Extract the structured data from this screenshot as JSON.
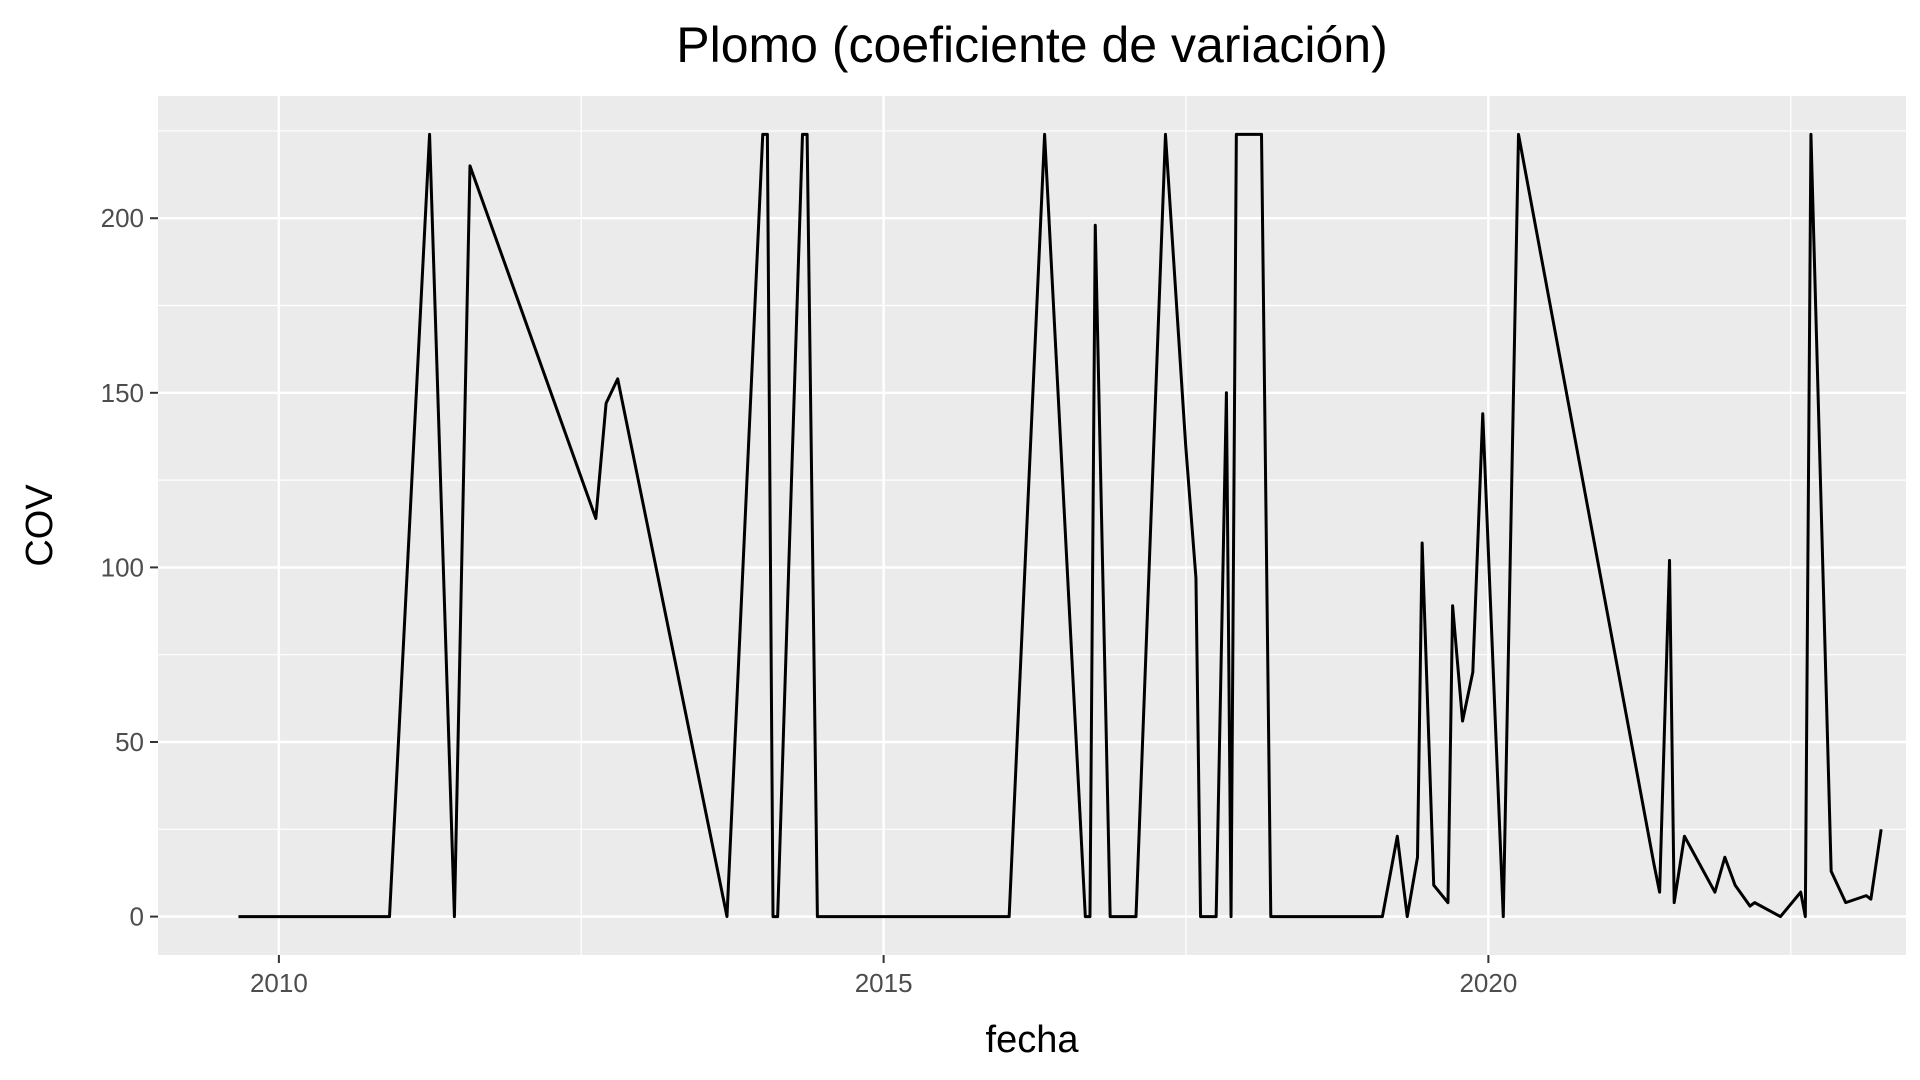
{
  "chart_data": {
    "type": "line",
    "title": "Plomo (coeficiente de variación)",
    "xlabel": "fecha",
    "ylabel": "COV",
    "x_is_date": true,
    "xlim": [
      "2009-01-01",
      "2023-06-15"
    ],
    "ylim": [
      -11,
      235
    ],
    "x_ticks": [
      {
        "value": "2010-01-01",
        "label": "2010"
      },
      {
        "value": "2015-01-01",
        "label": "2015"
      },
      {
        "value": "2020-01-01",
        "label": "2020"
      }
    ],
    "x_minor_ticks": [
      "2012-07-02",
      "2017-07-02",
      "2022-07-02"
    ],
    "y_ticks": [
      0,
      50,
      100,
      150,
      200
    ],
    "y_tick_labels": [
      "0",
      "50",
      "100",
      "150",
      "200"
    ],
    "y_minor_ticks": [
      25,
      75,
      125,
      175,
      225
    ],
    "grid": true,
    "colors": {
      "panel_background": "#ebebeb",
      "grid_line": "#ffffff",
      "series_line": "#000000",
      "tick_text": "#4d4d4d",
      "tick_mark": "#333333"
    },
    "series": [
      {
        "x": [
          "2009-09-01",
          "2010-12-01",
          "2011-04-01",
          "2011-06-15",
          "2011-08-01",
          "2012-08-15",
          "2012-09-15",
          "2012-10-20",
          "2013-09-15",
          "2014-01-01",
          "2014-01-15",
          "2014-02-01",
          "2014-02-15",
          "2014-05-01",
          "2014-05-15",
          "2014-06-15",
          "2016-01-01",
          "2016-01-15",
          "2016-05-01",
          "2016-09-01",
          "2016-09-15",
          "2016-10-01",
          "2016-11-15",
          "2017-02-01",
          "2017-05-01",
          "2017-07-01",
          "2017-08-01",
          "2017-08-15",
          "2017-10-01",
          "2017-11-01",
          "2017-11-15",
          "2017-12-01",
          "2018-02-15",
          "2018-03-15",
          "2019-02-15",
          "2019-04-01",
          "2019-05-01",
          "2019-06-01",
          "2019-06-15",
          "2019-07-20",
          "2019-09-01",
          "2019-09-15",
          "2019-10-15",
          "2019-11-15",
          "2019-12-15",
          "2020-02-15",
          "2020-04-01",
          "2021-05-15",
          "2021-06-01",
          "2021-07-01",
          "2021-07-15",
          "2021-08-15",
          "2021-11-15",
          "2021-12-15",
          "2022-01-15",
          "2022-03-01",
          "2022-03-15",
          "2022-06-01",
          "2022-08-01",
          "2022-08-15",
          "2022-09-01",
          "2022-11-01",
          "2022-12-15",
          "2023-02-15",
          "2023-03-01",
          "2023-04-01"
        ],
        "y": [
          0,
          0,
          224,
          0,
          215,
          114,
          147,
          154,
          0,
          224,
          224,
          0,
          0,
          224,
          224,
          0,
          0,
          0,
          224,
          0,
          0,
          198,
          0,
          0,
          224,
          135,
          97,
          0,
          0,
          150,
          0,
          224,
          224,
          0,
          0,
          23,
          0,
          17,
          107,
          9,
          4,
          89,
          56,
          70,
          144,
          0,
          224,
          15,
          7,
          102,
          4,
          23,
          7,
          17,
          9,
          3,
          4,
          0,
          7,
          0,
          224,
          13,
          4,
          6,
          5,
          25
        ]
      }
    ]
  }
}
